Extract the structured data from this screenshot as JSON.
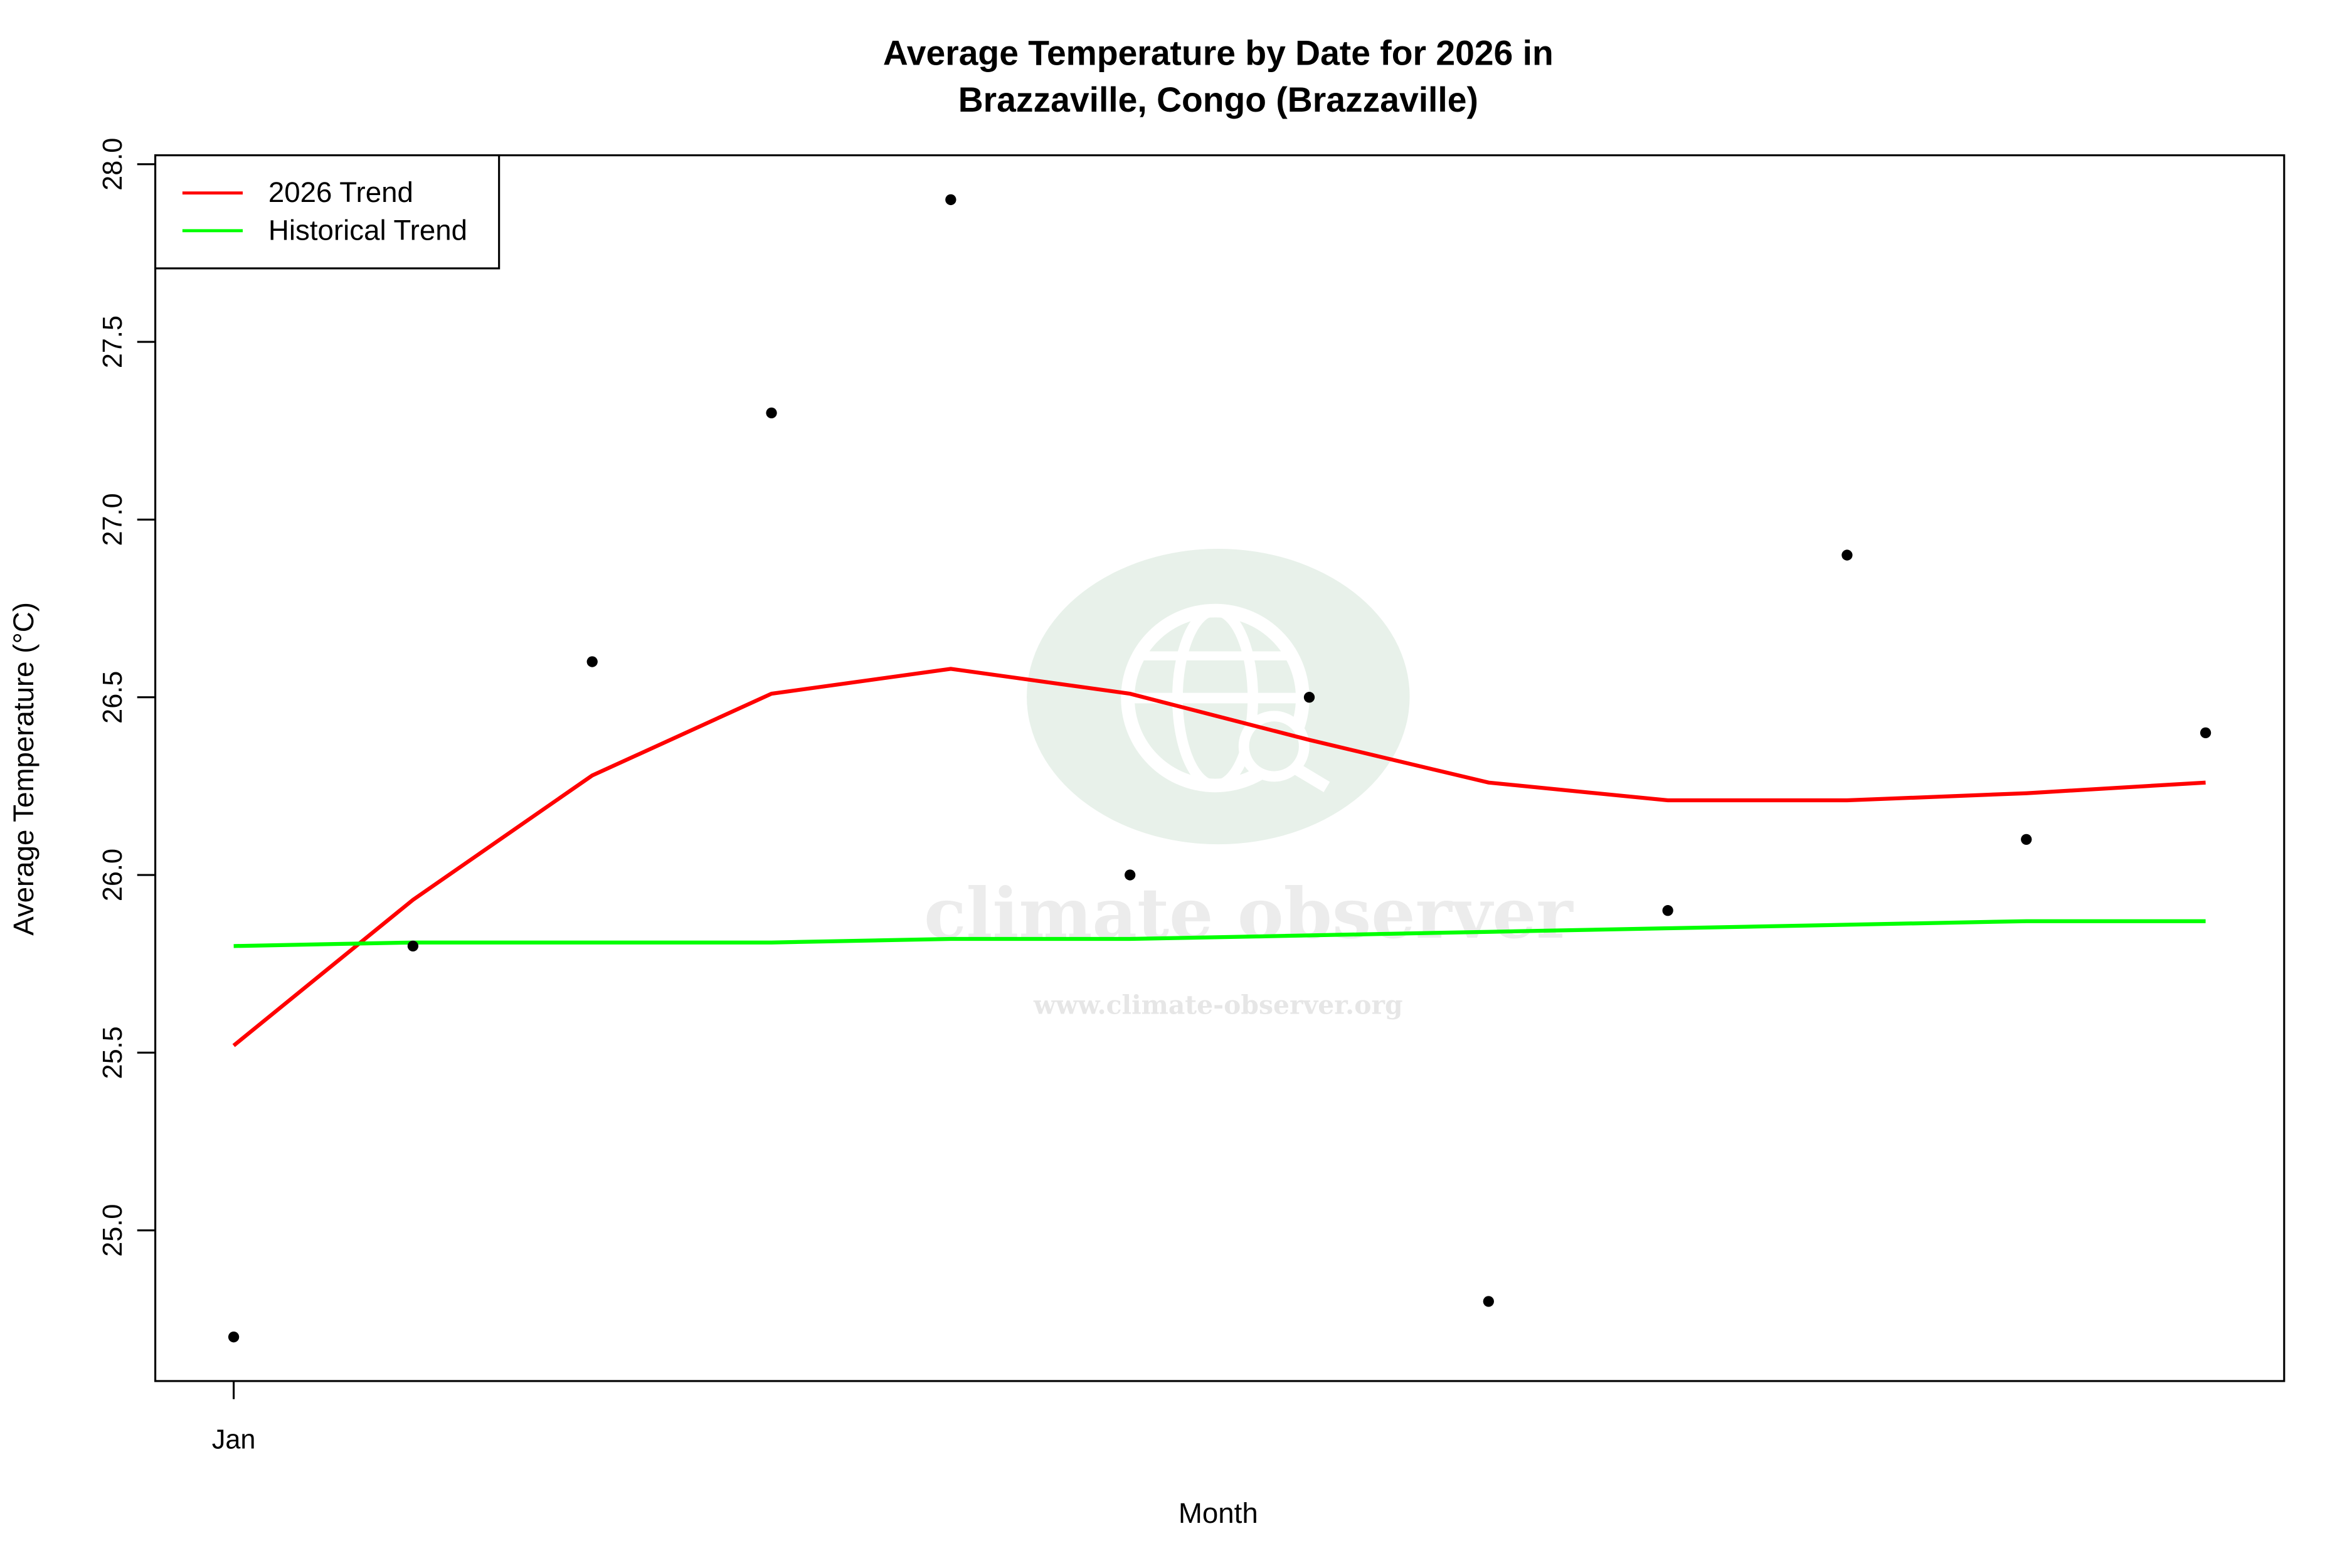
{
  "chart_data": {
    "type": "line",
    "title": "Average Temperature by Date for 2026 in",
    "subtitle": "Brazzaville, Congo (Brazzaville)",
    "x_label": "Month",
    "y_label": "Average Temperature (°C)",
    "categories": [
      "Jan",
      null,
      null,
      null,
      null,
      null,
      null,
      null,
      null,
      null,
      null,
      null
    ],
    "points": {
      "color": "#000000",
      "values": [
        24.7,
        25.8,
        26.6,
        27.3,
        27.9,
        26.0,
        26.5,
        24.8,
        25.9,
        26.9,
        26.1,
        26.4
      ]
    },
    "series": [
      {
        "name": "2026 Trend",
        "color": "#ff0000",
        "values": [
          25.52,
          25.93,
          26.28,
          26.51,
          26.58,
          26.51,
          26.38,
          26.26,
          26.21,
          26.21,
          26.23,
          26.26
        ]
      },
      {
        "name": "Historical Trend",
        "color": "#00ff00",
        "values": [
          25.8,
          25.81,
          25.81,
          25.81,
          25.82,
          25.82,
          25.83,
          25.84,
          25.85,
          25.86,
          25.87,
          25.87
        ]
      }
    ],
    "ylim": [
      24.576,
      28.025
    ],
    "yticks": [
      {
        "value": 25,
        "label": "25.0"
      },
      {
        "value": 25.5,
        "label": "25.5"
      },
      {
        "value": 26,
        "label": "26.0"
      },
      {
        "value": 26.5,
        "label": "26.5"
      },
      {
        "value": 27,
        "label": "27.0"
      },
      {
        "value": 27.5,
        "label": "27.5"
      },
      {
        "value": 28,
        "label": "28.0"
      }
    ],
    "grid": false,
    "legend": "top-left",
    "watermark": {
      "name": "climate observer",
      "url": "www.climate-observer.org"
    }
  }
}
